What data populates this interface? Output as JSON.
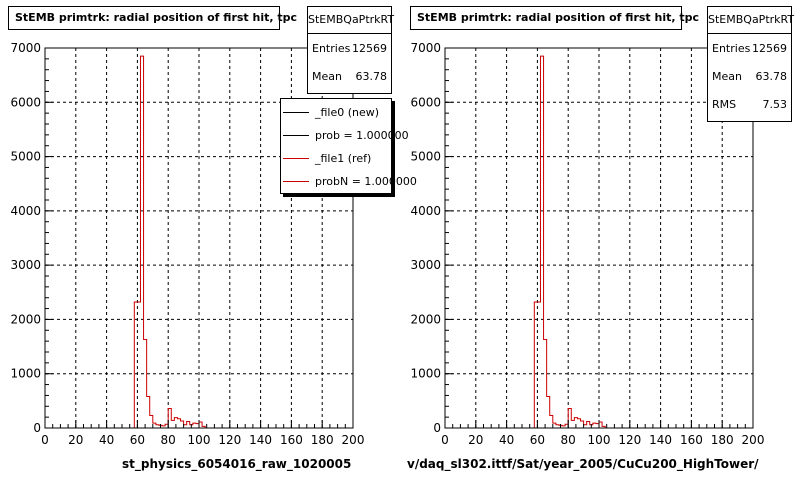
{
  "pads": [
    {
      "title": "StEMB primtrk: radial position of first hit, tpc",
      "stats": {
        "name": "StEMBQaPtrkRT",
        "rows": [
          {
            "label": "Entries",
            "value": "12569"
          },
          {
            "label": "Mean",
            "value": "63.78"
          }
        ]
      },
      "legend": [
        {
          "label": "_file0 (new)",
          "color": "#000000"
        },
        {
          "label": "prob = 1.000000",
          "color": "#000000"
        },
        {
          "label": "_file1 (ref)",
          "color": "#cc0000"
        },
        {
          "label": "probN = 1.000000",
          "color": "#cc0000"
        }
      ],
      "bottom_label": "st_physics_6054016_raw_1020005"
    },
    {
      "title": "StEMB primtrk: radial position of first hit, tpc",
      "stats": {
        "name": "StEMBQaPtrkRT",
        "rows": [
          {
            "label": "Entries",
            "value": "12569"
          },
          {
            "label": "Mean",
            "value": "63.78"
          },
          {
            "label": "RMS",
            "value": "7.53"
          }
        ]
      },
      "bottom_label": "v/daq_sl302.ittf/Sat/year_2005/CuCu200_HighTower/"
    }
  ],
  "chart_data": [
    {
      "type": "bar",
      "title": "StEMB primtrk: radial position of first hit, tpc",
      "xlim": [
        0,
        200
      ],
      "ylim": [
        0,
        7000
      ],
      "xticks": [
        0,
        20,
        40,
        60,
        80,
        100,
        120,
        140,
        160,
        180,
        200
      ],
      "yticks": [
        0,
        1000,
        2000,
        3000,
        4000,
        5000,
        6000,
        7000
      ],
      "grid": true,
      "bin_width": 2,
      "series": [
        {
          "name": "_file1 (ref)",
          "color": "#cc0000",
          "bins": [
            {
              "x": 58,
              "y": 2320
            },
            {
              "x": 60,
              "y": 2320
            },
            {
              "x": 62,
              "y": 6850
            },
            {
              "x": 64,
              "y": 1630
            },
            {
              "x": 66,
              "y": 580
            },
            {
              "x": 68,
              "y": 230
            },
            {
              "x": 70,
              "y": 90
            },
            {
              "x": 72,
              "y": 60
            },
            {
              "x": 74,
              "y": 50
            },
            {
              "x": 76,
              "y": 40
            },
            {
              "x": 78,
              "y": 70
            },
            {
              "x": 80,
              "y": 360
            },
            {
              "x": 82,
              "y": 140
            },
            {
              "x": 84,
              "y": 190
            },
            {
              "x": 86,
              "y": 170
            },
            {
              "x": 88,
              "y": 130
            },
            {
              "x": 90,
              "y": 60
            },
            {
              "x": 92,
              "y": 120
            },
            {
              "x": 94,
              "y": 60
            },
            {
              "x": 96,
              "y": 90
            },
            {
              "x": 98,
              "y": 80
            },
            {
              "x": 100,
              "y": 110
            },
            {
              "x": 102,
              "y": 30
            }
          ]
        }
      ]
    },
    {
      "type": "bar",
      "title": "StEMB primtrk: radial position of first hit, tpc",
      "xlim": [
        0,
        200
      ],
      "ylim": [
        0,
        7000
      ],
      "xticks": [
        0,
        20,
        40,
        60,
        80,
        100,
        120,
        140,
        160,
        180,
        200
      ],
      "yticks": [
        0,
        1000,
        2000,
        3000,
        4000,
        5000,
        6000,
        7000
      ],
      "grid": true,
      "bin_width": 2,
      "series": [
        {
          "name": "",
          "color": "#cc0000",
          "bins": [
            {
              "x": 58,
              "y": 2320
            },
            {
              "x": 60,
              "y": 2320
            },
            {
              "x": 62,
              "y": 6850
            },
            {
              "x": 64,
              "y": 1630
            },
            {
              "x": 66,
              "y": 580
            },
            {
              "x": 68,
              "y": 230
            },
            {
              "x": 70,
              "y": 90
            },
            {
              "x": 72,
              "y": 60
            },
            {
              "x": 74,
              "y": 50
            },
            {
              "x": 76,
              "y": 40
            },
            {
              "x": 78,
              "y": 70
            },
            {
              "x": 80,
              "y": 360
            },
            {
              "x": 82,
              "y": 140
            },
            {
              "x": 84,
              "y": 190
            },
            {
              "x": 86,
              "y": 170
            },
            {
              "x": 88,
              "y": 130
            },
            {
              "x": 90,
              "y": 60
            },
            {
              "x": 92,
              "y": 120
            },
            {
              "x": 94,
              "y": 60
            },
            {
              "x": 96,
              "y": 90
            },
            {
              "x": 98,
              "y": 80
            },
            {
              "x": 100,
              "y": 110
            },
            {
              "x": 102,
              "y": 30
            }
          ]
        }
      ]
    }
  ]
}
